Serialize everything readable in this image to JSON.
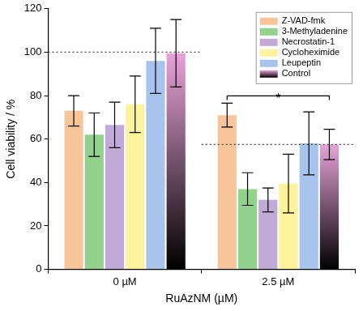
{
  "chart_data": {
    "type": "bar",
    "x_label": "RuAzNM (µM)",
    "y_label": "Cell viability / %",
    "categories": [
      "0 µM",
      "2.5 µM"
    ],
    "series": [
      {
        "name": "Z-VAD-fmk",
        "color": "#f8c49a",
        "values": [
          73,
          71
        ],
        "errors": [
          7,
          5.5
        ]
      },
      {
        "name": "3-Methyladenine",
        "color": "#92d28c",
        "values": [
          62,
          37
        ],
        "errors": [
          10,
          7.5
        ]
      },
      {
        "name": "Necrostatin-1",
        "color": "#c2aad8",
        "values": [
          66.5,
          32
        ],
        "errors": [
          10.5,
          5.5
        ]
      },
      {
        "name": "Cycloheximide",
        "color": "#fcf39c",
        "values": [
          76,
          39.5
        ],
        "errors": [
          13,
          13.5
        ]
      },
      {
        "name": "Leupeptin",
        "color": "#a8c4ec",
        "values": [
          96,
          58
        ],
        "errors": [
          15,
          14.5
        ]
      },
      {
        "name": "Control",
        "color": "linear-gradient(#e7a3d9, #000000)",
        "values": [
          99.5,
          57.5
        ],
        "errors": [
          15.5,
          7
        ]
      }
    ],
    "ylim": [
      0,
      120
    ],
    "yticks": [
      0,
      20,
      40,
      60,
      80,
      100,
      120
    ],
    "grid": false,
    "legend": "top-right",
    "reference_lines": [
      {
        "category": "0 µM",
        "value": 100
      },
      {
        "category": "2.5 µM",
        "value": 57.5
      }
    ],
    "annotations": [
      {
        "text": "*",
        "category": "2.5 µM",
        "from": "Z-VAD-fmk",
        "to": "Control"
      }
    ]
  }
}
